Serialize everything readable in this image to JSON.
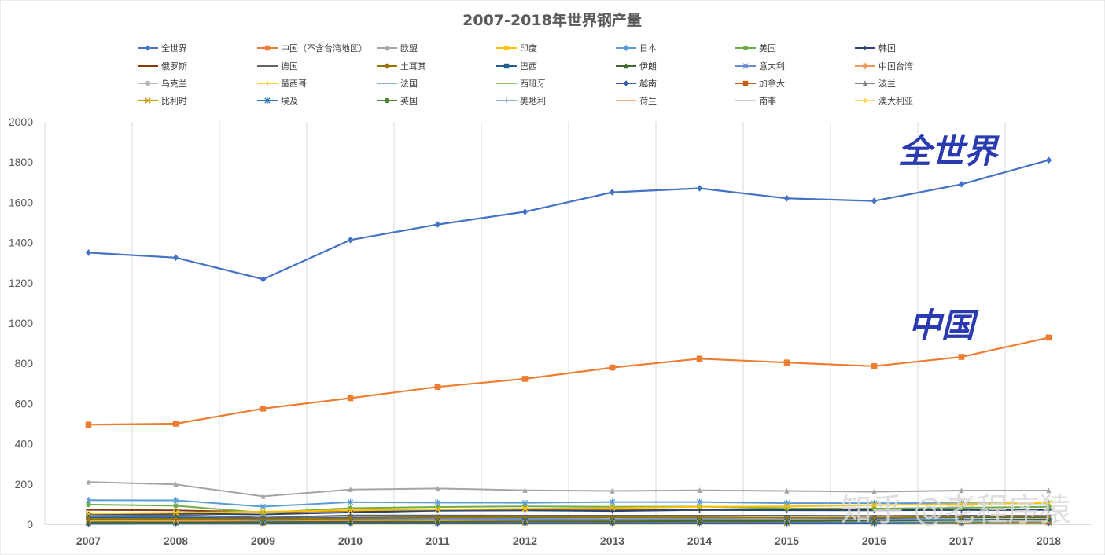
{
  "chart_data": {
    "type": "line",
    "title": "2007-2018年世界钢产量",
    "xlabel": "",
    "ylabel": "",
    "ylim": [
      0,
      2000
    ],
    "yticks": [
      0,
      200,
      400,
      600,
      800,
      1000,
      1200,
      1400,
      1600,
      1800,
      2000
    ],
    "x": [
      "2007",
      "2008",
      "2009",
      "2010",
      "2011",
      "2012",
      "2013",
      "2014",
      "2015",
      "2016",
      "2017",
      "2018"
    ],
    "grid": "vertical",
    "legend": "top",
    "annotations": [
      "全世界",
      "中国"
    ],
    "watermark": "知乎 @老程序猿",
    "series": [
      {
        "name": "全世界",
        "color": "#4472C4",
        "marker": "diamond",
        "values": [
          1350,
          1325,
          1218,
          1413,
          1490,
          1553,
          1650,
          1670,
          1620,
          1607,
          1690,
          1810
        ]
      },
      {
        "name": "中国（不含台湾地区）",
        "color": "#ED7D31",
        "marker": "square",
        "values": [
          495,
          500,
          575,
          627,
          683,
          723,
          779,
          823,
          804,
          786,
          832,
          928
        ]
      },
      {
        "name": "欧盟",
        "color": "#A5A5A5",
        "marker": "triangle",
        "values": [
          210,
          198,
          139,
          173,
          178,
          169,
          166,
          169,
          166,
          162,
          168,
          168
        ]
      },
      {
        "name": "印度",
        "color": "#FFC000",
        "marker": "x",
        "values": [
          53,
          58,
          63,
          69,
          74,
          77,
          81,
          87,
          89,
          95,
          101,
          106
        ]
      },
      {
        "name": "日本",
        "color": "#5B9BD5",
        "marker": "star",
        "values": [
          120,
          119,
          88,
          110,
          108,
          107,
          111,
          111,
          105,
          105,
          105,
          104
        ]
      },
      {
        "name": "美国",
        "color": "#70AD47",
        "marker": "circle",
        "values": [
          98,
          92,
          58,
          80,
          86,
          89,
          87,
          88,
          79,
          78,
          82,
          87
        ]
      },
      {
        "name": "韩国",
        "color": "#264478",
        "marker": "plus",
        "values": [
          51,
          53,
          49,
          59,
          68,
          69,
          66,
          71,
          70,
          69,
          71,
          72
        ]
      },
      {
        "name": "俄罗斯",
        "color": "#843C0C",
        "marker": "dash",
        "values": [
          72,
          69,
          60,
          67,
          68,
          70,
          69,
          71,
          71,
          71,
          71,
          72
        ]
      },
      {
        "name": "德国",
        "color": "#636363",
        "marker": "dash",
        "values": [
          49,
          46,
          33,
          44,
          44,
          43,
          43,
          43,
          43,
          42,
          43,
          42
        ]
      },
      {
        "name": "土耳其",
        "color": "#997300",
        "marker": "diamond",
        "values": [
          26,
          27,
          25,
          29,
          34,
          36,
          35,
          34,
          32,
          33,
          38,
          37
        ]
      },
      {
        "name": "巴西",
        "color": "#255E91",
        "marker": "square",
        "values": [
          34,
          34,
          27,
          33,
          35,
          35,
          34,
          34,
          33,
          31,
          34,
          35
        ]
      },
      {
        "name": "伊朗",
        "color": "#43682B",
        "marker": "triangle",
        "values": [
          10,
          10,
          11,
          12,
          13,
          14,
          15,
          16,
          16,
          18,
          21,
          25
        ]
      },
      {
        "name": "意大利",
        "color": "#698ED0",
        "marker": "x",
        "values": [
          32,
          31,
          20,
          26,
          28,
          27,
          24,
          24,
          22,
          23,
          24,
          25
        ]
      },
      {
        "name": "中国台湾",
        "color": "#F1975A",
        "marker": "star",
        "values": [
          21,
          20,
          16,
          20,
          23,
          21,
          22,
          23,
          21,
          22,
          22,
          23
        ]
      },
      {
        "name": "乌克兰",
        "color": "#B7B7B7",
        "marker": "circle",
        "values": [
          43,
          37,
          30,
          34,
          35,
          33,
          33,
          27,
          23,
          24,
          21,
          21
        ]
      },
      {
        "name": "墨西哥",
        "color": "#FFCD33",
        "marker": "plus",
        "values": [
          17,
          17,
          14,
          17,
          18,
          18,
          18,
          19,
          18,
          19,
          20,
          20
        ]
      },
      {
        "name": "法国",
        "color": "#7CAFDD",
        "marker": "dash",
        "values": [
          19,
          18,
          13,
          15,
          16,
          16,
          16,
          16,
          15,
          15,
          16,
          15
        ]
      },
      {
        "name": "西班牙",
        "color": "#8CC168",
        "marker": "dash",
        "values": [
          19,
          18,
          14,
          16,
          15,
          14,
          14,
          14,
          15,
          14,
          14,
          14
        ]
      },
      {
        "name": "越南",
        "color": "#335AA1",
        "marker": "diamond",
        "values": [
          2,
          3,
          3,
          4,
          4,
          4,
          5,
          6,
          6,
          8,
          11,
          14
        ]
      },
      {
        "name": "加拿大",
        "color": "#C55A11",
        "marker": "square",
        "values": [
          16,
          15,
          9,
          13,
          13,
          14,
          12,
          13,
          12,
          13,
          14,
          13
        ]
      },
      {
        "name": "波兰",
        "color": "#848484",
        "marker": "triangle",
        "values": [
          11,
          10,
          7,
          8,
          9,
          8,
          8,
          9,
          9,
          9,
          10,
          10
        ]
      },
      {
        "name": "比利时",
        "color": "#CC9A00",
        "marker": "x",
        "values": [
          11,
          11,
          6,
          8,
          8,
          7,
          7,
          7,
          7,
          8,
          8,
          8
        ]
      },
      {
        "name": "埃及",
        "color": "#2E75B6",
        "marker": "star",
        "values": [
          6,
          6,
          6,
          7,
          6,
          7,
          7,
          6,
          5,
          5,
          7,
          8
        ]
      },
      {
        "name": "英国",
        "color": "#548235",
        "marker": "circle",
        "values": [
          14,
          14,
          10,
          10,
          10,
          10,
          12,
          12,
          11,
          8,
          8,
          7
        ]
      },
      {
        "name": "奥地利",
        "color": "#8FAADC",
        "marker": "plus",
        "values": [
          8,
          8,
          6,
          7,
          8,
          7,
          8,
          8,
          8,
          7,
          8,
          7
        ]
      },
      {
        "name": "荷兰",
        "color": "#F4B183",
        "marker": "dash",
        "values": [
          7,
          7,
          5,
          7,
          7,
          7,
          7,
          7,
          7,
          7,
          7,
          7
        ]
      },
      {
        "name": "南非",
        "color": "#C9C9C9",
        "marker": "dash",
        "values": [
          9,
          8,
          7,
          8,
          7,
          7,
          7,
          7,
          6,
          6,
          6,
          6
        ]
      },
      {
        "name": "澳大利亚",
        "color": "#FFD966",
        "marker": "diamond",
        "values": [
          8,
          8,
          5,
          7,
          6,
          5,
          5,
          5,
          5,
          5,
          5,
          6
        ]
      }
    ]
  }
}
